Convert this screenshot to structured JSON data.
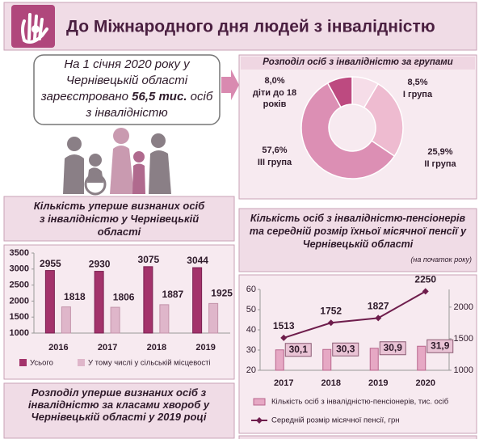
{
  "header": {
    "title": "До Міжнародного дня людей з інвалідністю"
  },
  "intro": {
    "text_before": "На 1 січня 2020 року у Чернівецькій області зареєстровано",
    "highlight": "56,5 тис.",
    "text_after": "осіб з інвалідністю"
  },
  "chart_data": [
    {
      "type": "pie",
      "title": "Розподіл осіб з інвалідністю за групами",
      "donut": true,
      "categories": [
        "І група",
        "ІІ група",
        "ІІІ група",
        "діти до 18 років"
      ],
      "values": [
        8.5,
        25.9,
        57.6,
        8.0
      ],
      "value_labels": [
        "8,5%",
        "25,9%",
        "57,6%",
        "8,0%"
      ],
      "colors": [
        "#f6dde8",
        "#eebbd0",
        "#dc8fb4",
        "#bd4a80"
      ]
    },
    {
      "type": "bar",
      "title": "Кількість уперше визнаних осіб з інвалідністю у Чернівецькій області",
      "categories": [
        "2016",
        "2017",
        "2018",
        "2019"
      ],
      "series": [
        {
          "name": "Усього",
          "color": "#a3336b",
          "values": [
            2955,
            2930,
            3075,
            3044
          ]
        },
        {
          "name": "У тому числі у сільській місцевості",
          "color": "#dfb6ca",
          "values": [
            1818,
            1806,
            1887,
            1925
          ]
        }
      ],
      "ylim": [
        1000,
        3500
      ],
      "yticks": [
        1000,
        1500,
        2000,
        2500,
        3000,
        3500
      ],
      "grid": false,
      "legend": "bottom"
    },
    {
      "type": "combo",
      "title": "Кількість осіб з інвалідністю-пенсіонерів та середній розмір їхньої місячної пенсії у Чернівецькій області",
      "subtitle": "(на початок року)",
      "categories": [
        "2017",
        "2018",
        "2019",
        "2020"
      ],
      "series": [
        {
          "name": "Кількість осіб з інвалідністю-пенсіонерів, тис. осіб",
          "type": "bar",
          "color": "#e6a8c4",
          "values": [
            30.1,
            30.3,
            30.9,
            31.9
          ],
          "value_labels": [
            "30,1",
            "30,3",
            "30,9",
            "31,9"
          ]
        },
        {
          "name": "Середній розмір місячної пенсії, грн",
          "type": "line",
          "color": "#6e1d4c",
          "axis": "y2",
          "values": [
            1513,
            1752,
            1827,
            2250
          ]
        }
      ],
      "ylim": [
        20,
        60
      ],
      "yticks": [
        20,
        30,
        40,
        50,
        60
      ],
      "y2lim": [
        1000,
        2280
      ],
      "y2ticks": [
        1000,
        1500,
        2000
      ],
      "grid": false,
      "legend": "bottom"
    }
  ],
  "footer": {
    "title": "Розподіл уперше визнаних осіб з інвалідністю за класами хвороб у Чернівецькій області у 2019 році"
  }
}
